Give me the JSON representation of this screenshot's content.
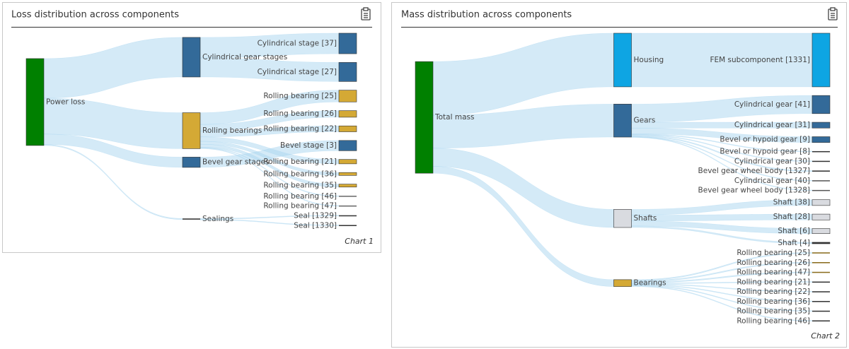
{
  "chart_data": [
    {
      "type": "sankey",
      "title": "Loss distribution across components",
      "caption": "Chart 1",
      "nodes": [
        {
          "name": "Power loss",
          "color": "#008000"
        },
        {
          "name": "Cylindrical gear stages",
          "color": "#336a99"
        },
        {
          "name": "Rolling bearings",
          "color": "#d4a935"
        },
        {
          "name": "Bevel gear stages",
          "color": "#336a99"
        },
        {
          "name": "Sealings",
          "color": "#333333"
        },
        {
          "name": "Cylindrical stage [37]",
          "color": "#336a99"
        },
        {
          "name": "Cylindrical stage [27]",
          "color": "#336a99"
        },
        {
          "name": "Rolling bearing [25]",
          "color": "#d4a935"
        },
        {
          "name": "Rolling bearing [26]",
          "color": "#d4a935"
        },
        {
          "name": "Rolling bearing [22]",
          "color": "#d4a935"
        },
        {
          "name": "Bevel stage [3]",
          "color": "#336a99"
        },
        {
          "name": "Rolling bearing [21]",
          "color": "#d4a935"
        },
        {
          "name": "Rolling bearing [36]",
          "color": "#d4a935"
        },
        {
          "name": "Rolling bearing [35]",
          "color": "#d4a935"
        },
        {
          "name": "Rolling bearing [46]",
          "color": "#666666"
        },
        {
          "name": "Rolling bearing [47]",
          "color": "#666666"
        },
        {
          "name": "Seal [1329]",
          "color": "#333333"
        },
        {
          "name": "Seal [1330]",
          "color": "#333333"
        }
      ],
      "links": [
        {
          "source": "Power loss",
          "target": "Cylindrical gear stages",
          "value": 54
        },
        {
          "source": "Power loss",
          "target": "Rolling bearings",
          "value": 49
        },
        {
          "source": "Power loss",
          "target": "Bevel gear stages",
          "value": 14
        },
        {
          "source": "Power loss",
          "target": "Sealings",
          "value": 1.5
        },
        {
          "source": "Cylindrical gear stages",
          "target": "Cylindrical stage [37]",
          "value": 28
        },
        {
          "source": "Cylindrical gear stages",
          "target": "Cylindrical stage [27]",
          "value": 26
        },
        {
          "source": "Rolling bearings",
          "target": "Rolling bearing [25]",
          "value": 16
        },
        {
          "source": "Rolling bearings",
          "target": "Rolling bearing [26]",
          "value": 9
        },
        {
          "source": "Rolling bearings",
          "target": "Rolling bearing [22]",
          "value": 8
        },
        {
          "source": "Rolling bearings",
          "target": "Rolling bearing [21]",
          "value": 6
        },
        {
          "source": "Rolling bearings",
          "target": "Rolling bearing [36]",
          "value": 4
        },
        {
          "source": "Rolling bearings",
          "target": "Rolling bearing [35]",
          "value": 4
        },
        {
          "source": "Rolling bearings",
          "target": "Rolling bearing [46]",
          "value": 1
        },
        {
          "source": "Rolling bearings",
          "target": "Rolling bearing [47]",
          "value": 1
        },
        {
          "source": "Bevel gear stages",
          "target": "Bevel stage [3]",
          "value": 14
        },
        {
          "source": "Sealings",
          "target": "Seal [1329]",
          "value": 1
        },
        {
          "source": "Sealings",
          "target": "Seal [1330]",
          "value": 0.5
        }
      ]
    },
    {
      "type": "sankey",
      "title": "Mass distribution across components",
      "caption": "Chart 2",
      "nodes": [
        {
          "name": "Total mass",
          "color": "#008000"
        },
        {
          "name": "Housing",
          "color": "#0ea5e3"
        },
        {
          "name": "Gears",
          "color": "#336a99"
        },
        {
          "name": "Shafts",
          "color": "#d9dbe0"
        },
        {
          "name": "Bearings",
          "color": "#d4a935"
        },
        {
          "name": "FEM subcomponent [1331]",
          "color": "#0ea5e3"
        },
        {
          "name": "Cylindrical gear [41]",
          "color": "#336a99"
        },
        {
          "name": "Cylindrical gear [31]",
          "color": "#336a99"
        },
        {
          "name": "Bevel or hypoid gear [9]",
          "color": "#336a99"
        },
        {
          "name": "Bevel or hypoid gear [8]",
          "color": "#333333"
        },
        {
          "name": "Cylindrical gear [30]",
          "color": "#333333"
        },
        {
          "name": "Bevel gear wheel body [1327]",
          "color": "#333333"
        },
        {
          "name": "Cylindrical gear [40]",
          "color": "#555555"
        },
        {
          "name": "Bevel gear wheel body [1328]",
          "color": "#555555"
        },
        {
          "name": "Shaft [38]",
          "color": "#d9dbe0"
        },
        {
          "name": "Shaft [28]",
          "color": "#d9dbe0"
        },
        {
          "name": "Shaft [6]",
          "color": "#d9dbe0"
        },
        {
          "name": "Shaft [4]",
          "color": "#333333"
        },
        {
          "name": "Rolling bearing [25]",
          "color": "#8a6d1f"
        },
        {
          "name": "Rolling bearing [26]",
          "color": "#8a6d1f"
        },
        {
          "name": "Rolling bearing [47]",
          "color": "#8a6d1f"
        },
        {
          "name": "Rolling bearing [21]",
          "color": "#333333"
        },
        {
          "name": "Rolling bearing [22]",
          "color": "#333333"
        },
        {
          "name": "Rolling bearing [36]",
          "color": "#333333"
        },
        {
          "name": "Rolling bearing [35]",
          "color": "#333333"
        },
        {
          "name": "Rolling bearing [46]",
          "color": "#333333"
        }
      ],
      "links": [
        {
          "source": "Total mass",
          "target": "Housing",
          "value": 74
        },
        {
          "source": "Total mass",
          "target": "Gears",
          "value": 45.5
        },
        {
          "source": "Total mass",
          "target": "Shafts",
          "value": 25
        },
        {
          "source": "Total mass",
          "target": "Bearings",
          "value": 9.5
        },
        {
          "source": "Housing",
          "target": "FEM subcomponent [1331]",
          "value": 74
        },
        {
          "source": "Gears",
          "target": "Cylindrical gear [41]",
          "value": 25
        },
        {
          "source": "Gears",
          "target": "Cylindrical gear [31]",
          "value": 8
        },
        {
          "source": "Gears",
          "target": "Bevel or hypoid gear [9]",
          "value": 8
        },
        {
          "source": "Gears",
          "target": "Bevel or hypoid gear [8]",
          "value": 1
        },
        {
          "source": "Gears",
          "target": "Cylindrical gear [30]",
          "value": 1
        },
        {
          "source": "Gears",
          "target": "Bevel gear wheel body [1327]",
          "value": 1.5
        },
        {
          "source": "Gears",
          "target": "Cylindrical gear [40]",
          "value": 0.5
        },
        {
          "source": "Gears",
          "target": "Bevel gear wheel body [1328]",
          "value": 0.5
        },
        {
          "source": "Shafts",
          "target": "Shaft [38]",
          "value": 8
        },
        {
          "source": "Shafts",
          "target": "Shaft [28]",
          "value": 8
        },
        {
          "source": "Shafts",
          "target": "Shaft [6]",
          "value": 7
        },
        {
          "source": "Shafts",
          "target": "Shaft [4]",
          "value": 2
        },
        {
          "source": "Bearings",
          "target": "Rolling bearing [25]",
          "value": 1.5
        },
        {
          "source": "Bearings",
          "target": "Rolling bearing [26]",
          "value": 1.5
        },
        {
          "source": "Bearings",
          "target": "Rolling bearing [47]",
          "value": 1.5
        },
        {
          "source": "Bearings",
          "target": "Rolling bearing [21]",
          "value": 1
        },
        {
          "source": "Bearings",
          "target": "Rolling bearing [22]",
          "value": 1
        },
        {
          "source": "Bearings",
          "target": "Rolling bearing [36]",
          "value": 1
        },
        {
          "source": "Bearings",
          "target": "Rolling bearing [35]",
          "value": 1
        },
        {
          "source": "Bearings",
          "target": "Rolling bearing [46]",
          "value": 1
        }
      ]
    }
  ]
}
